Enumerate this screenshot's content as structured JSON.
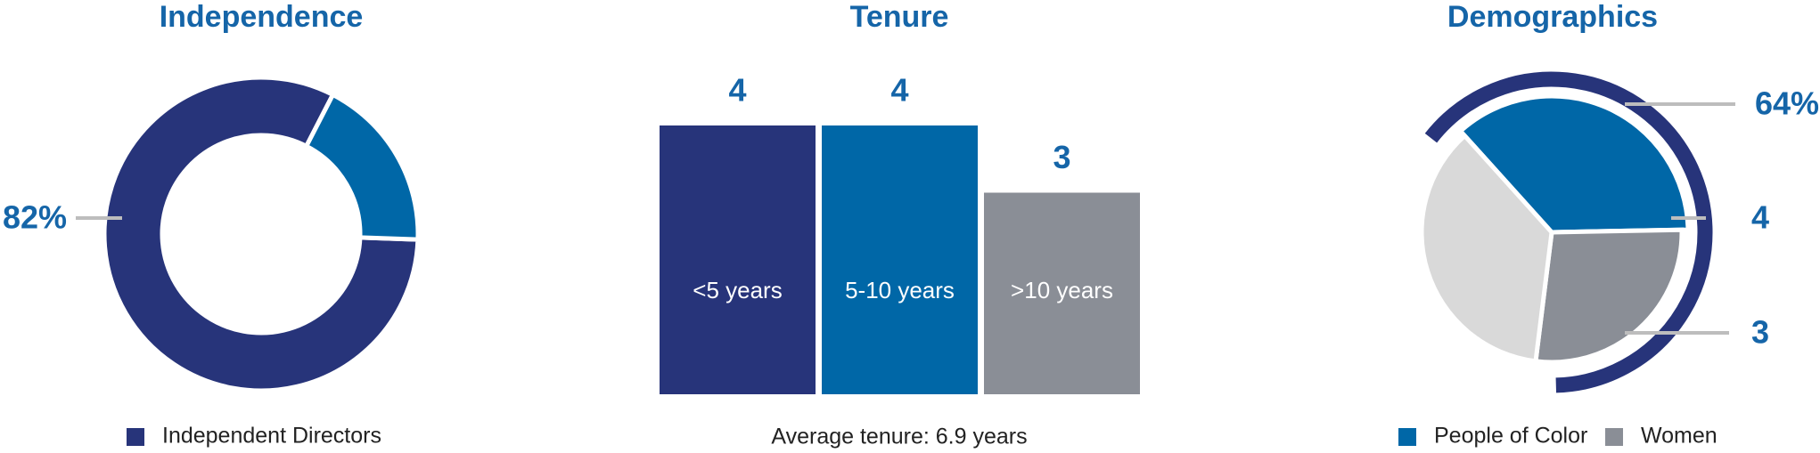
{
  "chart_data": [
    {
      "type": "donut",
      "title": "Independence",
      "categories": [
        "Independent Directors",
        null
      ],
      "values": [
        82,
        18
      ],
      "value_labels": [
        "82%",
        null
      ],
      "colors": [
        "#27347a",
        "#0067a7"
      ]
    },
    {
      "type": "bar",
      "title": "Tenure",
      "categories": [
        "<5 years",
        "5-10 years",
        ">10 years"
      ],
      "values": [
        4,
        4,
        3
      ],
      "colors": [
        "#27347a",
        "#0067a7",
        "#8a8e96"
      ],
      "ylim": [
        0,
        4
      ],
      "note": "Average tenure: 6.9 years"
    },
    {
      "type": "pie",
      "title": "Demographics",
      "categories": [
        "People of Color",
        "Women",
        null
      ],
      "values": [
        4,
        3,
        4
      ],
      "colors": [
        "#0067a7",
        "#8a8e96",
        "#d9d9d9"
      ],
      "outer_ring": {
        "value": 64,
        "label": "64%",
        "color": "#27347a"
      }
    }
  ]
}
